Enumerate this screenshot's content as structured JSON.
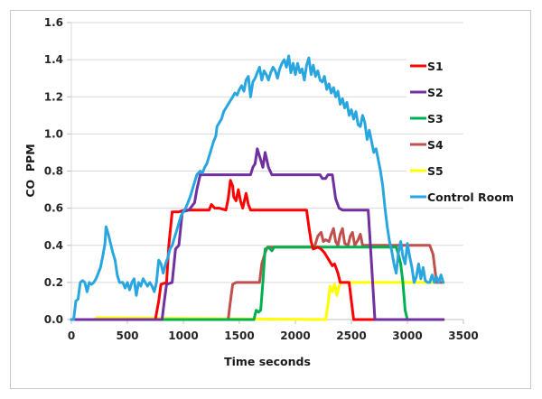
{
  "chart_data": {
    "type": "line",
    "title": "",
    "xlabel": "Time seconds",
    "ylabel": "CO  PPM",
    "xlim": [
      0,
      3500
    ],
    "ylim": [
      0,
      1.6
    ],
    "x_ticks": [
      "0",
      "500",
      "1000",
      "1500",
      "2000",
      "2500",
      "3000",
      "3500"
    ],
    "x_tick_values": [
      0,
      500,
      1000,
      1500,
      2000,
      2500,
      3000,
      3500
    ],
    "y_ticks": [
      "0.0",
      "0.2",
      "0.4",
      "0.6",
      "0.8",
      "1.0",
      "1.2",
      "1.4",
      "1.6"
    ],
    "y_tick_values": [
      0,
      0.2,
      0.4,
      0.6,
      0.8,
      1.0,
      1.2,
      1.4,
      1.6
    ],
    "grid": true,
    "legend_position": "right",
    "series": [
      {
        "name": "S1",
        "color": "#ff0000",
        "points": [
          [
            0,
            0
          ],
          [
            750,
            0
          ],
          [
            780,
            0.1
          ],
          [
            800,
            0.19
          ],
          [
            850,
            0.2
          ],
          [
            870,
            0.4
          ],
          [
            900,
            0.58
          ],
          [
            960,
            0.58
          ],
          [
            1010,
            0.59
          ],
          [
            1230,
            0.59
          ],
          [
            1250,
            0.62
          ],
          [
            1280,
            0.6
          ],
          [
            1320,
            0.6
          ],
          [
            1380,
            0.59
          ],
          [
            1400,
            0.65
          ],
          [
            1420,
            0.75
          ],
          [
            1440,
            0.72
          ],
          [
            1450,
            0.66
          ],
          [
            1470,
            0.64
          ],
          [
            1490,
            0.7
          ],
          [
            1510,
            0.64
          ],
          [
            1530,
            0.6
          ],
          [
            1560,
            0.68
          ],
          [
            1580,
            0.62
          ],
          [
            1600,
            0.59
          ],
          [
            2100,
            0.59
          ],
          [
            2120,
            0.5
          ],
          [
            2140,
            0.42
          ],
          [
            2160,
            0.38
          ],
          [
            2200,
            0.39
          ],
          [
            2230,
            0.38
          ],
          [
            2260,
            0.36
          ],
          [
            2280,
            0.34
          ],
          [
            2300,
            0.32
          ],
          [
            2330,
            0.29
          ],
          [
            2350,
            0.3
          ],
          [
            2380,
            0.25
          ],
          [
            2400,
            0.2
          ],
          [
            2430,
            0.2
          ],
          [
            2480,
            0.2
          ],
          [
            2500,
            0.1
          ],
          [
            2520,
            0
          ],
          [
            3320,
            0
          ]
        ]
      },
      {
        "name": "S2",
        "color": "#7030a0",
        "points": [
          [
            0,
            0
          ],
          [
            810,
            0
          ],
          [
            830,
            0.1
          ],
          [
            850,
            0.19
          ],
          [
            900,
            0.2
          ],
          [
            930,
            0.38
          ],
          [
            960,
            0.4
          ],
          [
            990,
            0.58
          ],
          [
            1050,
            0.59
          ],
          [
            1100,
            0.63
          ],
          [
            1120,
            0.7
          ],
          [
            1150,
            0.78
          ],
          [
            1600,
            0.78
          ],
          [
            1620,
            0.82
          ],
          [
            1640,
            0.84
          ],
          [
            1660,
            0.92
          ],
          [
            1690,
            0.86
          ],
          [
            1710,
            0.82
          ],
          [
            1730,
            0.9
          ],
          [
            1760,
            0.82
          ],
          [
            1790,
            0.78
          ],
          [
            2220,
            0.78
          ],
          [
            2240,
            0.76
          ],
          [
            2270,
            0.76
          ],
          [
            2290,
            0.78
          ],
          [
            2330,
            0.78
          ],
          [
            2360,
            0.65
          ],
          [
            2390,
            0.6
          ],
          [
            2420,
            0.59
          ],
          [
            2650,
            0.59
          ],
          [
            2680,
            0.3
          ],
          [
            2710,
            0
          ],
          [
            3320,
            0
          ]
        ]
      },
      {
        "name": "S3",
        "color": "#00b050",
        "points": [
          [
            0,
            0
          ],
          [
            1630,
            0
          ],
          [
            1650,
            0.05
          ],
          [
            1670,
            0.04
          ],
          [
            1690,
            0.05
          ],
          [
            1710,
            0.2
          ],
          [
            1730,
            0.38
          ],
          [
            1760,
            0.39
          ],
          [
            1790,
            0.37
          ],
          [
            1810,
            0.39
          ],
          [
            2900,
            0.39
          ],
          [
            2920,
            0.35
          ],
          [
            2940,
            0.3
          ],
          [
            2960,
            0.2
          ],
          [
            2980,
            0.05
          ],
          [
            3000,
            0
          ],
          [
            3320,
            0
          ]
        ]
      },
      {
        "name": "S4",
        "color": "#c0504d",
        "points": [
          [
            0,
            0
          ],
          [
            1400,
            0
          ],
          [
            1420,
            0.1
          ],
          [
            1440,
            0.19
          ],
          [
            1470,
            0.2
          ],
          [
            1680,
            0.2
          ],
          [
            1700,
            0.3
          ],
          [
            1730,
            0.36
          ],
          [
            1750,
            0.39
          ],
          [
            2170,
            0.39
          ],
          [
            2200,
            0.45
          ],
          [
            2230,
            0.47
          ],
          [
            2250,
            0.42
          ],
          [
            2270,
            0.43
          ],
          [
            2300,
            0.42
          ],
          [
            2320,
            0.46
          ],
          [
            2340,
            0.49
          ],
          [
            2360,
            0.42
          ],
          [
            2380,
            0.4
          ],
          [
            2400,
            0.46
          ],
          [
            2420,
            0.49
          ],
          [
            2440,
            0.41
          ],
          [
            2470,
            0.4
          ],
          [
            2490,
            0.45
          ],
          [
            2510,
            0.47
          ],
          [
            2530,
            0.4
          ],
          [
            2560,
            0.43
          ],
          [
            2580,
            0.46
          ],
          [
            2600,
            0.4
          ],
          [
            3200,
            0.4
          ],
          [
            3230,
            0.35
          ],
          [
            3260,
            0.2
          ],
          [
            3320,
            0.2
          ]
        ]
      },
      {
        "name": "S5",
        "color": "#ffff00",
        "points": [
          [
            0,
            0
          ],
          [
            60,
            0
          ],
          [
            200,
            0
          ],
          [
            230,
            0.01
          ],
          [
            2270,
            0
          ],
          [
            2290,
            0.08
          ],
          [
            2310,
            0.18
          ],
          [
            2330,
            0.15
          ],
          [
            2350,
            0.19
          ],
          [
            2370,
            0.13
          ],
          [
            2390,
            0.18
          ],
          [
            2410,
            0.2
          ],
          [
            3320,
            0.2
          ]
        ]
      },
      {
        "name": "Control Room",
        "color": "#29a6e0",
        "points": [
          [
            0,
            0
          ],
          [
            20,
            0
          ],
          [
            40,
            0.1
          ],
          [
            60,
            0.11
          ],
          [
            80,
            0.2
          ],
          [
            100,
            0.21
          ],
          [
            120,
            0.2
          ],
          [
            140,
            0.15
          ],
          [
            160,
            0.2
          ],
          [
            180,
            0.19
          ],
          [
            200,
            0.2
          ],
          [
            220,
            0.22
          ],
          [
            240,
            0.25
          ],
          [
            260,
            0.28
          ],
          [
            280,
            0.34
          ],
          [
            300,
            0.41
          ],
          [
            310,
            0.5
          ],
          [
            330,
            0.46
          ],
          [
            350,
            0.41
          ],
          [
            370,
            0.36
          ],
          [
            390,
            0.32
          ],
          [
            410,
            0.24
          ],
          [
            430,
            0.2
          ],
          [
            460,
            0.2
          ],
          [
            480,
            0.17
          ],
          [
            500,
            0.2
          ],
          [
            520,
            0.16
          ],
          [
            540,
            0.2
          ],
          [
            560,
            0.22
          ],
          [
            580,
            0.13
          ],
          [
            600,
            0.2
          ],
          [
            620,
            0.18
          ],
          [
            640,
            0.22
          ],
          [
            660,
            0.2
          ],
          [
            680,
            0.18
          ],
          [
            700,
            0.2
          ],
          [
            720,
            0.18
          ],
          [
            740,
            0.15
          ],
          [
            760,
            0.2
          ],
          [
            780,
            0.32
          ],
          [
            800,
            0.3
          ],
          [
            820,
            0.25
          ],
          [
            840,
            0.3
          ],
          [
            860,
            0.33
          ],
          [
            880,
            0.38
          ],
          [
            900,
            0.4
          ],
          [
            920,
            0.44
          ],
          [
            940,
            0.48
          ],
          [
            960,
            0.52
          ],
          [
            980,
            0.56
          ],
          [
            1000,
            0.58
          ],
          [
            1020,
            0.6
          ],
          [
            1040,
            0.63
          ],
          [
            1060,
            0.66
          ],
          [
            1080,
            0.7
          ],
          [
            1100,
            0.74
          ],
          [
            1120,
            0.78
          ],
          [
            1150,
            0.8
          ],
          [
            1170,
            0.79
          ],
          [
            1190,
            0.82
          ],
          [
            1210,
            0.84
          ],
          [
            1230,
            0.88
          ],
          [
            1250,
            0.92
          ],
          [
            1270,
            0.96
          ],
          [
            1290,
            0.99
          ],
          [
            1300,
            1.04
          ],
          [
            1320,
            1.06
          ],
          [
            1340,
            1.08
          ],
          [
            1360,
            1.12
          ],
          [
            1380,
            1.14
          ],
          [
            1400,
            1.16
          ],
          [
            1420,
            1.18
          ],
          [
            1440,
            1.2
          ],
          [
            1460,
            1.22
          ],
          [
            1480,
            1.21
          ],
          [
            1500,
            1.24
          ],
          [
            1520,
            1.26
          ],
          [
            1540,
            1.23
          ],
          [
            1560,
            1.29
          ],
          [
            1580,
            1.31
          ],
          [
            1600,
            1.2
          ],
          [
            1620,
            1.28
          ],
          [
            1640,
            1.3
          ],
          [
            1660,
            1.33
          ],
          [
            1680,
            1.36
          ],
          [
            1700,
            1.29
          ],
          [
            1720,
            1.34
          ],
          [
            1740,
            1.32
          ],
          [
            1760,
            1.29
          ],
          [
            1780,
            1.33
          ],
          [
            1800,
            1.36
          ],
          [
            1820,
            1.34
          ],
          [
            1840,
            1.3
          ],
          [
            1860,
            1.35
          ],
          [
            1880,
            1.38
          ],
          [
            1900,
            1.4
          ],
          [
            1920,
            1.36
          ],
          [
            1940,
            1.42
          ],
          [
            1960,
            1.33
          ],
          [
            1980,
            1.38
          ],
          [
            2000,
            1.32
          ],
          [
            2020,
            1.38
          ],
          [
            2040,
            1.33
          ],
          [
            2060,
            1.35
          ],
          [
            2080,
            1.29
          ],
          [
            2100,
            1.37
          ],
          [
            2120,
            1.41
          ],
          [
            2140,
            1.32
          ],
          [
            2160,
            1.37
          ],
          [
            2180,
            1.31
          ],
          [
            2200,
            1.34
          ],
          [
            2220,
            1.29
          ],
          [
            2240,
            1.28
          ],
          [
            2260,
            1.31
          ],
          [
            2280,
            1.24
          ],
          [
            2300,
            1.27
          ],
          [
            2320,
            1.22
          ],
          [
            2340,
            1.25
          ],
          [
            2360,
            1.2
          ],
          [
            2380,
            1.23
          ],
          [
            2400,
            1.16
          ],
          [
            2420,
            1.19
          ],
          [
            2440,
            1.14
          ],
          [
            2460,
            1.17
          ],
          [
            2480,
            1.1
          ],
          [
            2500,
            1.13
          ],
          [
            2520,
            1.08
          ],
          [
            2540,
            1.12
          ],
          [
            2560,
            1.05
          ],
          [
            2580,
            1.04
          ],
          [
            2600,
            1.1
          ],
          [
            2620,
            1.06
          ],
          [
            2640,
            0.97
          ],
          [
            2660,
            1.02
          ],
          [
            2680,
            0.96
          ],
          [
            2700,
            0.9
          ],
          [
            2720,
            0.92
          ],
          [
            2740,
            0.86
          ],
          [
            2760,
            0.8
          ],
          [
            2780,
            0.72
          ],
          [
            2800,
            0.6
          ],
          [
            2820,
            0.5
          ],
          [
            2840,
            0.42
          ],
          [
            2860,
            0.37
          ],
          [
            2880,
            0.3
          ],
          [
            2900,
            0.25
          ],
          [
            2920,
            0.36
          ],
          [
            2940,
            0.42
          ],
          [
            2960,
            0.34
          ],
          [
            2980,
            0.3
          ],
          [
            3000,
            0.41
          ],
          [
            3020,
            0.34
          ],
          [
            3040,
            0.28
          ],
          [
            3060,
            0.2
          ],
          [
            3080,
            0.23
          ],
          [
            3100,
            0.3
          ],
          [
            3120,
            0.22
          ],
          [
            3140,
            0.28
          ],
          [
            3160,
            0.21
          ],
          [
            3180,
            0.2
          ],
          [
            3200,
            0.2
          ],
          [
            3220,
            0.24
          ],
          [
            3240,
            0.2
          ],
          [
            3260,
            0.23
          ],
          [
            3280,
            0.2
          ],
          [
            3300,
            0.24
          ],
          [
            3320,
            0.2
          ]
        ]
      }
    ]
  }
}
